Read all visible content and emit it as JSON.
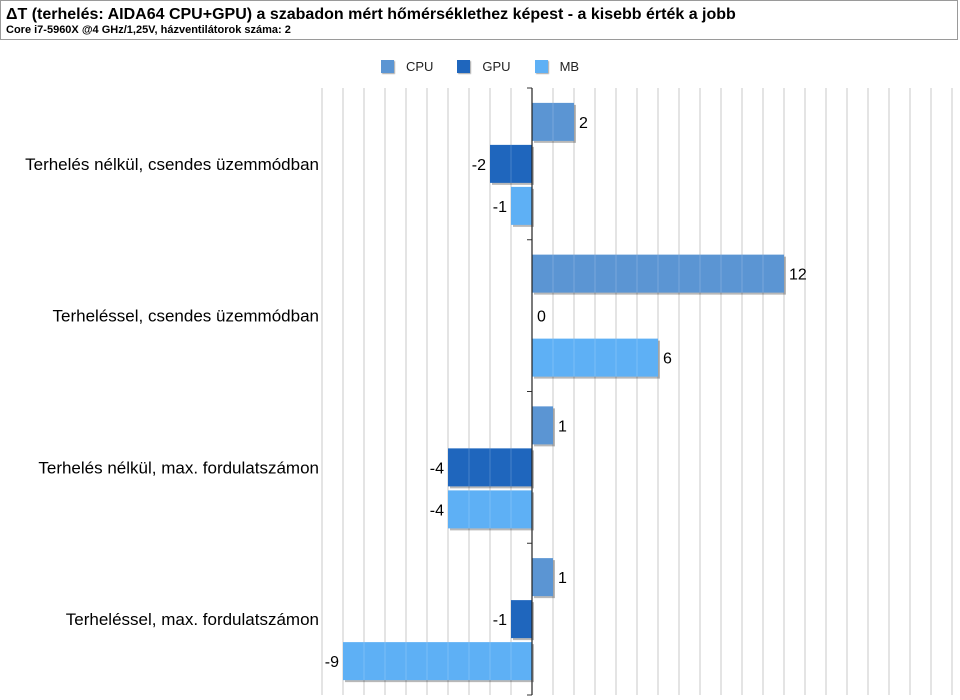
{
  "header": {
    "title": "ΔT (terhelés: AIDA64 CPU+GPU) a szabadon mért hőmérséklethez képest - a kisebb érték a jobb",
    "subtitle": "Core i7-5960X @4 GHz/1,25V, házventilátorok száma: 2"
  },
  "legend": [
    {
      "name": "CPU",
      "color": "#5b95d3"
    },
    {
      "name": "GPU",
      "color": "#1f66bd"
    },
    {
      "name": "MB",
      "color": "#5eb0f5"
    }
  ],
  "chart_data": {
    "type": "bar",
    "orientation": "horizontal",
    "title": "ΔT (terhelés: AIDA64 CPU+GPU) a szabadon mért hőmérséklethez képest - a kisebb érték a jobb",
    "subtitle": "Core i7-5960X @4 GHz/1,25V, házventilátorok száma: 2",
    "categories": [
      "Terhelés nélkül, csendes üzemmódban",
      "Terheléssel, csendes üzemmódban",
      "Terhelés nélkül, max. fordulatszámon",
      "Terheléssel, max. fordulatszámon"
    ],
    "series": [
      {
        "name": "CPU",
        "color": "#5b95d3",
        "values": [
          2,
          12,
          1,
          1
        ]
      },
      {
        "name": "GPU",
        "color": "#1f66bd",
        "values": [
          -2,
          0,
          -4,
          -1
        ]
      },
      {
        "name": "MB",
        "color": "#5eb0f5",
        "values": [
          -1,
          6,
          -4,
          -9
        ]
      }
    ],
    "xlim": [
      -10,
      20
    ],
    "grid": true,
    "legend_position": "top-center",
    "data_labels": true
  }
}
